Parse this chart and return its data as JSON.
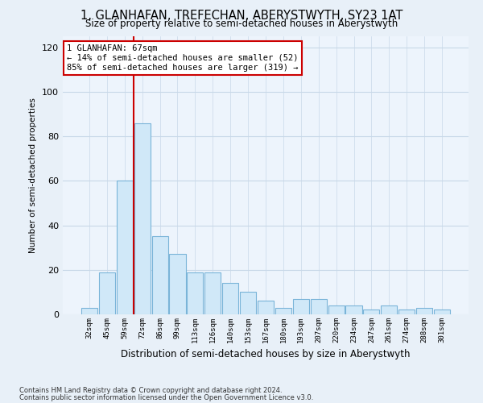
{
  "title": "1, GLANHAFAN, TREFECHAN, ABERYSTWYTH, SY23 1AT",
  "subtitle": "Size of property relative to semi-detached houses in Aberystwyth",
  "xlabel": "Distribution of semi-detached houses by size in Aberystwyth",
  "ylabel": "Number of semi-detached properties",
  "categories": [
    "32sqm",
    "45sqm",
    "59sqm",
    "72sqm",
    "86sqm",
    "99sqm",
    "113sqm",
    "126sqm",
    "140sqm",
    "153sqm",
    "167sqm",
    "180sqm",
    "193sqm",
    "207sqm",
    "220sqm",
    "234sqm",
    "247sqm",
    "261sqm",
    "274sqm",
    "288sqm",
    "301sqm"
  ],
  "values": [
    3,
    19,
    60,
    86,
    35,
    27,
    19,
    19,
    14,
    10,
    6,
    3,
    7,
    7,
    4,
    4,
    2,
    4,
    2,
    3,
    2
  ],
  "bar_color": "#d0e8f8",
  "bar_edge_color": "#7ab4d8",
  "vline_position": 2.5,
  "vline_color": "#cc0000",
  "annotation_text": "1 GLANHAFAN: 67sqm\n← 14% of semi-detached houses are smaller (52)\n85% of semi-detached houses are larger (319) →",
  "annotation_box_facecolor": "white",
  "annotation_box_edgecolor": "#cc0000",
  "ylim": [
    0,
    125
  ],
  "yticks": [
    0,
    20,
    40,
    60,
    80,
    100,
    120
  ],
  "footnote1": "Contains HM Land Registry data © Crown copyright and database right 2024.",
  "footnote2": "Contains public sector information licensed under the Open Government Licence v3.0.",
  "fig_facecolor": "#e8f0f8",
  "plot_facecolor": "#edf4fc",
  "grid_color": "#c8d8e8"
}
